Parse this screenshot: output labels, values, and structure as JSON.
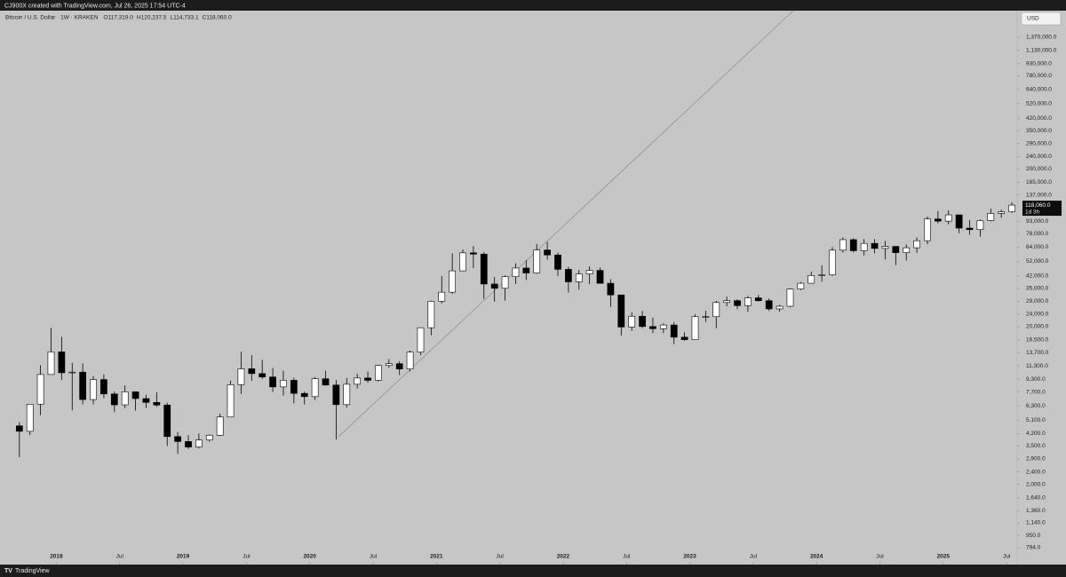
{
  "header": {
    "attribution": "CJ900X created with TradingView.com, Jul 26, 2025 17:54 UTC-4"
  },
  "footer": {
    "brand": "TradingView"
  },
  "chart_data": {
    "type": "candlestick",
    "title": "Bitcoin / U.S. Dollar · 1W · KRAKEN",
    "ohlc_text": [
      "O117,319.0",
      "H120,237.5",
      "L114,733.1",
      "C118,060.0"
    ],
    "currency": "USD",
    "last_price": {
      "value": 118060,
      "label": "118,060.0"
    },
    "countdown": "1d 3h",
    "log_scale": true,
    "colors": {
      "up": "#ffffff",
      "down": "#000000",
      "border": "#000000"
    },
    "xlim": [
      "2017-08",
      "2025-08"
    ],
    "xticks": [
      {
        "value": "2018-01",
        "label": "2018"
      },
      {
        "value": "2018-07",
        "label": "Jul"
      },
      {
        "value": "2019-01",
        "label": "2019"
      },
      {
        "value": "2019-07",
        "label": "Jul"
      },
      {
        "value": "2020-01",
        "label": "2020"
      },
      {
        "value": "2020-07",
        "label": "Jul"
      },
      {
        "value": "2021-01",
        "label": "2021"
      },
      {
        "value": "2021-07",
        "label": "Jul"
      },
      {
        "value": "2022-01",
        "label": "2022"
      },
      {
        "value": "2022-07",
        "label": "Jul"
      },
      {
        "value": "2023-01",
        "label": "2023"
      },
      {
        "value": "2023-07",
        "label": "Jul"
      },
      {
        "value": "2024-01",
        "label": "2024"
      },
      {
        "value": "2024-07",
        "label": "Jul"
      },
      {
        "value": "2025-01",
        "label": "2025"
      },
      {
        "value": "2025-07",
        "label": "Jul"
      }
    ],
    "ylim": [
      620,
      2020000
    ],
    "yticks": [
      {
        "value": 1370000,
        "label": "1,370,000.0"
      },
      {
        "value": 1130000,
        "label": "1,130,000.0"
      },
      {
        "value": 930000,
        "label": "930,000.0"
      },
      {
        "value": 780000,
        "label": "780,000.0"
      },
      {
        "value": 640000,
        "label": "640,000.0"
      },
      {
        "value": 520000,
        "label": "520,000.0"
      },
      {
        "value": 420000,
        "label": "420,000.0"
      },
      {
        "value": 350000,
        "label": "350,000.0"
      },
      {
        "value": 290000,
        "label": "290,000.0"
      },
      {
        "value": 240000,
        "label": "240,000.0"
      },
      {
        "value": 200000,
        "label": "200,000.0"
      },
      {
        "value": 165000,
        "label": "165,000.0"
      },
      {
        "value": 137000,
        "label": "137,000.0"
      },
      {
        "value": 93000,
        "label": "93,000.0"
      },
      {
        "value": 78000,
        "label": "78,000.0"
      },
      {
        "value": 64000,
        "label": "64,000.0"
      },
      {
        "value": 52000,
        "label": "52,000.0"
      },
      {
        "value": 42000,
        "label": "42,000.0"
      },
      {
        "value": 35000,
        "label": "35,000.0"
      },
      {
        "value": 29000,
        "label": "29,000.0"
      },
      {
        "value": 24000,
        "label": "24,000.0"
      },
      {
        "value": 20000,
        "label": "20,000.0"
      },
      {
        "value": 16500,
        "label": "16,500.0"
      },
      {
        "value": 13700,
        "label": "13,700.0"
      },
      {
        "value": 11300,
        "label": "11,300.0"
      },
      {
        "value": 9300,
        "label": "9,300.0"
      },
      {
        "value": 7700,
        "label": "7,700.0"
      },
      {
        "value": 6300,
        "label": "6,300.0"
      },
      {
        "value": 5100,
        "label": "5,100.0"
      },
      {
        "value": 4200,
        "label": "4,200.0"
      },
      {
        "value": 3500,
        "label": "3,500.0"
      },
      {
        "value": 2900,
        "label": "2,900.0"
      },
      {
        "value": 2400,
        "label": "2,400.0"
      },
      {
        "value": 2000,
        "label": "2,000.0"
      },
      {
        "value": 1640,
        "label": "1,640.0"
      },
      {
        "value": 1360,
        "label": "1,360.0"
      },
      {
        "value": 1140,
        "label": "1,140.0"
      },
      {
        "value": 950,
        "label": "950.0"
      },
      {
        "value": 794,
        "label": "794.0"
      }
    ],
    "x": [
      "2017-09",
      "2017-10",
      "2017-11",
      "2017-12",
      "2018-01",
      "2018-02",
      "2018-03",
      "2018-04",
      "2018-05",
      "2018-06",
      "2018-07",
      "2018-08",
      "2018-09",
      "2018-10",
      "2018-11",
      "2018-12",
      "2019-01",
      "2019-02",
      "2019-03",
      "2019-04",
      "2019-05",
      "2019-06",
      "2019-07",
      "2019-08",
      "2019-09",
      "2019-10",
      "2019-11",
      "2019-12",
      "2020-01",
      "2020-02",
      "2020-03",
      "2020-04",
      "2020-05",
      "2020-06",
      "2020-07",
      "2020-08",
      "2020-09",
      "2020-10",
      "2020-11",
      "2020-12",
      "2021-01",
      "2021-02",
      "2021-03",
      "2021-04",
      "2021-05",
      "2021-06",
      "2021-07",
      "2021-08",
      "2021-09",
      "2021-10",
      "2021-11",
      "2021-12",
      "2022-01",
      "2022-02",
      "2022-03",
      "2022-04",
      "2022-05",
      "2022-06",
      "2022-07",
      "2022-08",
      "2022-09",
      "2022-10",
      "2022-11",
      "2022-12",
      "2023-01",
      "2023-02",
      "2023-03",
      "2023-04",
      "2023-05",
      "2023-06",
      "2023-07",
      "2023-08",
      "2023-09",
      "2023-10",
      "2023-11",
      "2023-12",
      "2024-01",
      "2024-02",
      "2024-03",
      "2024-04",
      "2024-05",
      "2024-06",
      "2024-07",
      "2024-08",
      "2024-09",
      "2024-10",
      "2024-11",
      "2024-12",
      "2025-01",
      "2025-02",
      "2025-03",
      "2025-04",
      "2025-05",
      "2025-06",
      "2025-07"
    ],
    "open": [
      4700,
      4340,
      6450,
      9950,
      13850,
      10200,
      10300,
      6900,
      9240,
      7490,
      6390,
      7730,
      7000,
      6620,
      6370,
      4020,
      3740,
      3450,
      3820,
      4100,
      5350,
      8570,
      10820,
      10080,
      9600,
      8300,
      9150,
      7550,
      7200,
      9350,
      8530,
      6410,
      8630,
      9450,
      9140,
      11350,
      11650,
      10780,
      13800,
      19700,
      28990,
      33100,
      45200,
      58800,
      57700,
      37300,
      35040,
      41500,
      47100,
      43800,
      61300,
      57000,
      46200,
      38500,
      43200,
      45500,
      37700,
      31800,
      19900,
      23300,
      20050,
      19420,
      20500,
      17160,
      16540,
      23130,
      23140,
      28460,
      29250,
      27200,
      30470,
      29230,
      25930,
      26960,
      34650,
      37720,
      42270,
      42580,
      61150,
      71300,
      60660,
      67500,
      62700,
      64600,
      58970,
      63330,
      70200,
      96400,
      93400,
      102400,
      84350,
      82500,
      94200,
      104600,
      107100
    ],
    "high": [
      4970,
      6470,
      11400,
      19650,
      17250,
      11800,
      11700,
      9750,
      9990,
      7770,
      8490,
      7750,
      7400,
      7680,
      6580,
      4300,
      4100,
      4200,
      4150,
      5620,
      9090,
      13880,
      13200,
      12320,
      10950,
      10540,
      9500,
      7750,
      9580,
      10500,
      9180,
      9460,
      10070,
      10380,
      11450,
      12480,
      12070,
      14100,
      19800,
      29300,
      41950,
      58350,
      61780,
      64900,
      59500,
      41300,
      42300,
      50500,
      52900,
      67000,
      69000,
      59100,
      47990,
      45800,
      48200,
      47500,
      40000,
      31900,
      24650,
      25200,
      22800,
      21000,
      21450,
      18400,
      23950,
      25250,
      29200,
      31000,
      29800,
      31400,
      31800,
      30200,
      27480,
      35000,
      38400,
      44700,
      48970,
      63900,
      73800,
      72700,
      71950,
      72000,
      70000,
      65100,
      66500,
      73600,
      99800,
      108300,
      109300,
      102500,
      95000,
      95750,
      111900,
      110500,
      123200
    ],
    "low": [
      2975,
      4110,
      5500,
      10900,
      9200,
      5900,
      6450,
      6430,
      7050,
      5750,
      6080,
      5880,
      6100,
      6200,
      3500,
      3120,
      3350,
      3380,
      3730,
      4060,
      5330,
      7500,
      9070,
      9330,
      7710,
      7300,
      6520,
      6430,
      6850,
      8450,
      3850,
      6150,
      8130,
      8830,
      8990,
      10980,
      9880,
      10400,
      13200,
      17650,
      28130,
      32300,
      45000,
      47000,
      30000,
      28800,
      29300,
      37300,
      39600,
      43300,
      53250,
      42000,
      32900,
      34300,
      37200,
      37700,
      26700,
      17600,
      18800,
      19550,
      18150,
      18200,
      15480,
      16300,
      16500,
      21400,
      19550,
      26950,
      25800,
      24800,
      28850,
      25160,
      24900,
      26550,
      34100,
      37600,
      38550,
      41900,
      59000,
      59200,
      56600,
      58400,
      53500,
      49100,
      52600,
      58900,
      66800,
      90500,
      89200,
      78200,
      76600,
      74400,
      93400,
      98200,
      105100
    ],
    "close": [
      4340,
      6450,
      9950,
      13850,
      10200,
      10300,
      6900,
      9240,
      7490,
      6390,
      7730,
      7000,
      6620,
      6370,
      4020,
      3740,
      3450,
      3820,
      4100,
      5350,
      8570,
      10820,
      10080,
      9600,
      8300,
      9150,
      7550,
      7200,
      9350,
      8530,
      6410,
      8630,
      9450,
      9140,
      11350,
      11650,
      10780,
      13800,
      19700,
      28990,
      33100,
      45200,
      58800,
      57700,
      37300,
      35040,
      41500,
      47100,
      43800,
      61300,
      57000,
      46200,
      38500,
      43200,
      45500,
      37700,
      31800,
      19900,
      23300,
      20050,
      19420,
      20500,
      17160,
      16540,
      23130,
      23140,
      28460,
      29250,
      27200,
      30470,
      29230,
      25930,
      26960,
      34650,
      37720,
      42270,
      42580,
      61150,
      71300,
      60660,
      67500,
      62700,
      64600,
      58970,
      63330,
      70200,
      96400,
      93400,
      102400,
      84350,
      82500,
      94200,
      104600,
      107100,
      118060
    ]
  }
}
